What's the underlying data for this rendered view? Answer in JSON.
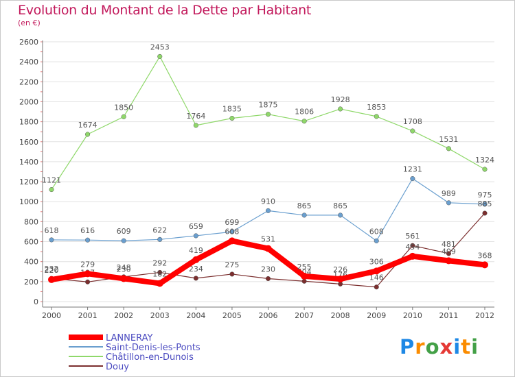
{
  "title": "Evolution du Montant de la Dette par Habitant",
  "subtitle": "(en €)",
  "logo": {
    "text": "Proxiti",
    "letters": [
      "P",
      "r",
      "o",
      "x",
      "i",
      "t",
      "i"
    ],
    "colors": [
      "#1e88e5",
      "#fb8c00",
      "#43a047",
      "#e53935",
      "#1e88e5",
      "#fb8c00",
      "#43a047"
    ]
  },
  "chart_data": {
    "type": "line",
    "x": [
      "2000",
      "2001",
      "2002",
      "2003",
      "2004",
      "2005",
      "2006",
      "2007",
      "2008",
      "2009",
      "2010",
      "2011",
      "2012"
    ],
    "ylim": [
      0,
      2600
    ],
    "yticks": [
      0,
      200,
      400,
      600,
      800,
      1000,
      1200,
      1400,
      1600,
      1800,
      2000,
      2200,
      2400,
      2600
    ],
    "grid": true,
    "legend_position": "bottom-left",
    "series": [
      {
        "name": "Châtillon-en-Dunois",
        "color": "#8fd86a",
        "width": 1.2,
        "values": [
          1121,
          1674,
          1850,
          2453,
          1764,
          1835,
          1875,
          1806,
          1928,
          1853,
          1708,
          1531,
          1324
        ],
        "labels": [
          "1121",
          "1674",
          "1850",
          "2453",
          "1764",
          "1835",
          "1875",
          "1806",
          "1928",
          "1853",
          "1708",
          "1531",
          "1324"
        ]
      },
      {
        "name": "Saint-Denis-les-Ponts",
        "color": "#6a9fcf",
        "width": 1.2,
        "values": [
          618,
          616,
          609,
          622,
          659,
          699,
          910,
          865,
          865,
          608,
          1231,
          989,
          975
        ],
        "labels": [
          "618",
          "616",
          "609",
          "622",
          "659",
          "699",
          "910",
          "865",
          "865",
          "608",
          "1231",
          "989",
          "975"
        ]
      },
      {
        "name": "Douy",
        "color": "#7b2e2e",
        "width": 1.2,
        "values": [
          232,
          197,
          248,
          292,
          234,
          275,
          230,
          204,
          176,
          146,
          561,
          481,
          885
        ],
        "labels": [
          "232",
          "197",
          "248",
          "292",
          "234",
          "275",
          "230",
          "204",
          "176",
          "146",
          "561",
          "481",
          "885"
        ]
      },
      {
        "name": "LANNERAY",
        "color": "#ff0000",
        "width": 8,
        "values": [
          220,
          279,
          230,
          182,
          419,
          608,
          531,
          255,
          226,
          306,
          454,
          409,
          368
        ],
        "labels": [
          "220",
          "279",
          "230",
          "182",
          "419",
          "608",
          "531",
          "255",
          "226",
          "306",
          "454",
          "409",
          "368"
        ]
      }
    ],
    "legend": [
      "LANNERAY",
      "Saint-Denis-les-Ponts",
      "Châtillon-en-Dunois",
      "Douy"
    ]
  }
}
